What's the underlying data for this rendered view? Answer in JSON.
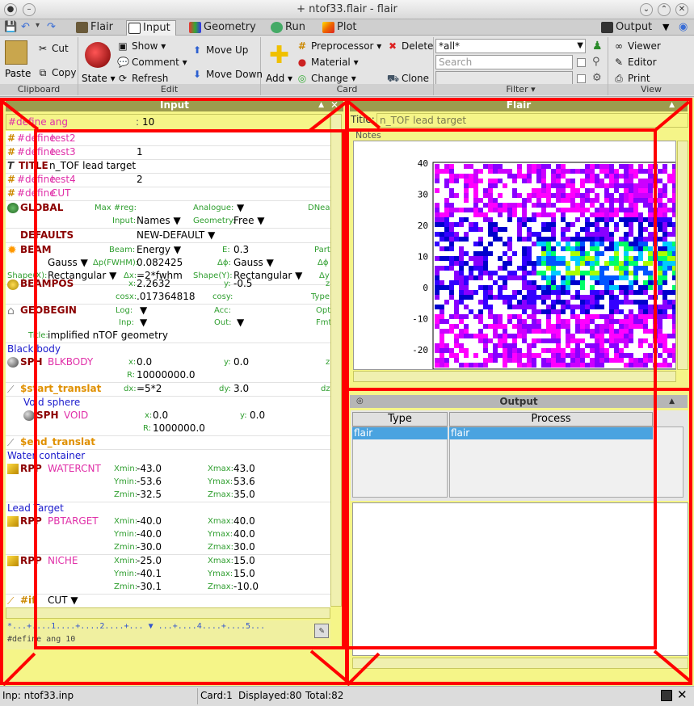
{
  "window": {
    "title": "+ ntof33.flair - flair"
  },
  "tabs": [
    {
      "label": "Flair"
    },
    {
      "label": "Input"
    },
    {
      "label": "Geometry"
    },
    {
      "label": "Run"
    },
    {
      "label": "Plot"
    }
  ],
  "output_tab": "Output",
  "ribbon": {
    "clipboard": {
      "paste": "Paste",
      "cut": "Cut",
      "copy": "Copy",
      "label": "Clipboard"
    },
    "edit": {
      "state": "State",
      "show": "Show",
      "comment": "Comment",
      "refresh": "Refresh",
      "move_up": "Move Up",
      "move_down": "Move Down",
      "label": "Edit"
    },
    "card": {
      "add": "Add",
      "preprocessor": "Preprocessor",
      "material": "Material",
      "change": "Change",
      "delete": "Delete",
      "clone": "Clone",
      "label": "Card"
    },
    "filter": {
      "value": "*all*",
      "search_placeholder": "Search",
      "label": "Filter"
    },
    "view": {
      "viewer": "Viewer",
      "editor": "Editor",
      "print": "Print",
      "label": "View"
    }
  },
  "input_panel": {
    "title": "Input",
    "top_row": {
      "name": "#define ang",
      "value": "10"
    },
    "rows": [
      {
        "k": "#define",
        "n": "test2"
      },
      {
        "k": "#define",
        "n": "test3",
        "v": "1"
      },
      {
        "k": "TITLE",
        "n": "n_TOF lead target"
      },
      {
        "k": "#define",
        "n": "test4",
        "v": "2"
      },
      {
        "k": "#define",
        "n": "CUT"
      }
    ],
    "global": {
      "name": "GLOBAL",
      "l1": "Max #reg:",
      "l2": "Analogue:",
      "l3": "DNear",
      "l4": "Input:",
      "v4": "Names",
      "l5": "Geometry:",
      "v5": "Free"
    },
    "defaults": {
      "name": "DEFAULTS",
      "value": "NEW-DEFAULT"
    },
    "beam": {
      "name": "BEAM",
      "l_beam": "Beam:",
      "v_beam": "Energy",
      "l_e": "E:",
      "v_e": "0.3",
      "l_part": "Part",
      "l_dp": "Δp(FWHM):",
      "v_dp": "0.082425",
      "l_p": "Δp:",
      "v_p": "Gauss",
      "l_dphi": "Δϕ:",
      "v_dphi": "Gauss",
      "l_dphi2": "Δϕ",
      "l_shx": "Shape(X):",
      "v_shx": "Rectangular",
      "l_dx": "Δx:",
      "v_dx": "=2*fwhm",
      "l_shy": "Shape(Y):",
      "v_shy": "Rectangular",
      "l_dy": "Δy"
    },
    "beampos": {
      "name": "BEAMPOS",
      "l_x": "x:",
      "v_x": "2.2632",
      "l_y": "y:",
      "v_y": "-0.5",
      "l_z": "z",
      "l_cosx": "cosx:",
      "v_cosx": ".017364818",
      "l_cosy": "cosy:",
      "l_type": "Type"
    },
    "geobegin": {
      "name": "GEOBEGIN",
      "l_log": "Log:",
      "l_acc": "Acc:",
      "l_opt": "Opt",
      "l_inp": "Inp:",
      "l_out": "Out:",
      "l_fmt": "Fmt",
      "l_title": "Title:",
      "v_title": "implified nTOF geometry"
    },
    "blackbody": {
      "comment": "Black body",
      "kind": "SPH",
      "name": "BLKBODY",
      "l_x": "x:",
      "v_x": "0.0",
      "l_y": "y:",
      "v_y": "0.0",
      "l_z": "z",
      "l_r": "R:",
      "v_r": "10000000.0"
    },
    "translat1": {
      "name": "$start_translat",
      "l_dx": "dx:",
      "v_dx": "=5*2",
      "l_dy": "dy:",
      "v_dy": "3.0",
      "l_dz": "dz"
    },
    "void": {
      "comment": "Void sphere",
      "kind": "SPH",
      "name": "VOID",
      "l_x": "x:",
      "v_x": "0.0",
      "l_y": "y:",
      "v_y": "0.0",
      "l_r": "R:",
      "v_r": "1000000.0"
    },
    "translat2": {
      "name": "$end_translat"
    },
    "water": {
      "comment": "Water container",
      "kind": "RPP",
      "name": "WATERCNT",
      "xmin": "-43.0",
      "xmax": "43.0",
      "ymin": "-53.6",
      "ymax": "53.6",
      "zmin": "-32.5",
      "zmax": "35.0"
    },
    "lead": {
      "comment": "Lead Target",
      "kind": "RPP",
      "name": "PBTARGET",
      "xmin": "-40.0",
      "xmax": "40.0",
      "ymin": "-40.0",
      "ymax": "40.0",
      "zmin": "-30.0",
      "zmax": "30.0"
    },
    "niche": {
      "kind": "RPP",
      "name": "NICHE",
      "xmin": "-25.0",
      "xmax": "15.0",
      "ymin": "-40.1",
      "ymax": "15.0",
      "zmin": "-30.1",
      "zmax": "-10.0"
    },
    "labels": {
      "xmin": "Xmin:",
      "xmax": "Xmax:",
      "ymin": "Ymin:",
      "ymax": "Ymax:",
      "zmin": "Zmin:",
      "zmax": "Zmax:"
    },
    "ifcut": {
      "name": "#if",
      "value": "CUT"
    },
    "ruler": "*...+....1....+....2....+...  ▼  ...+....4....+....5...",
    "editline": "#define ang 10"
  },
  "flair_panel": {
    "title": "Flair",
    "title_label": "Title:",
    "title_value": "n_TOF lead target",
    "notes": "Notes",
    "y_ticks": [
      "40",
      "30",
      "20",
      "10",
      "0",
      "-10",
      "-20"
    ]
  },
  "output_panel": {
    "title": "Output",
    "col_type": "Type",
    "col_process": "Process",
    "row_type": "flair",
    "row_process": "flair"
  },
  "status": {
    "file": "Inp: ntof33.inp",
    "card": "Card:1",
    "displayed": "Displayed:80",
    "total": "Total:82"
  }
}
